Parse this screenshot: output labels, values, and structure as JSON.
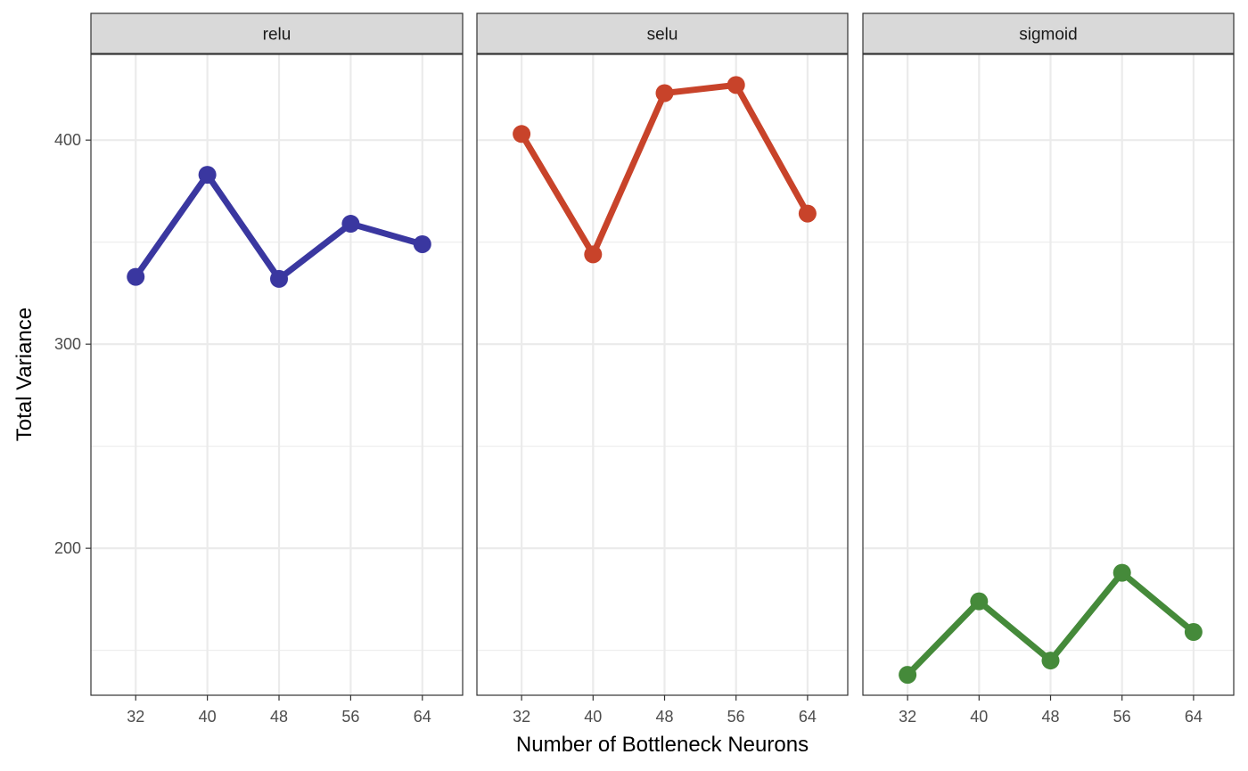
{
  "chart_data": {
    "type": "line",
    "xlabel": "Number of Bottleneck Neurons",
    "ylabel": "Total Variance",
    "x": [
      32,
      40,
      48,
      56,
      64
    ],
    "x_ticks": [
      "32",
      "40",
      "48",
      "56",
      "64"
    ],
    "y_ticks": [
      "200",
      "300",
      "400"
    ],
    "ylim": [
      128,
      442
    ],
    "x_range": [
      27,
      68.5
    ],
    "grid": true,
    "facets": [
      {
        "name": "relu",
        "color": "#3a37a0",
        "values": [
          333,
          383,
          332,
          359,
          349
        ]
      },
      {
        "name": "selu",
        "color": "#c8432a",
        "values": [
          403,
          344,
          423,
          427,
          364
        ]
      },
      {
        "name": "sigmoid",
        "color": "#458a3a",
        "values": [
          138,
          174,
          145,
          188,
          159
        ]
      }
    ]
  }
}
